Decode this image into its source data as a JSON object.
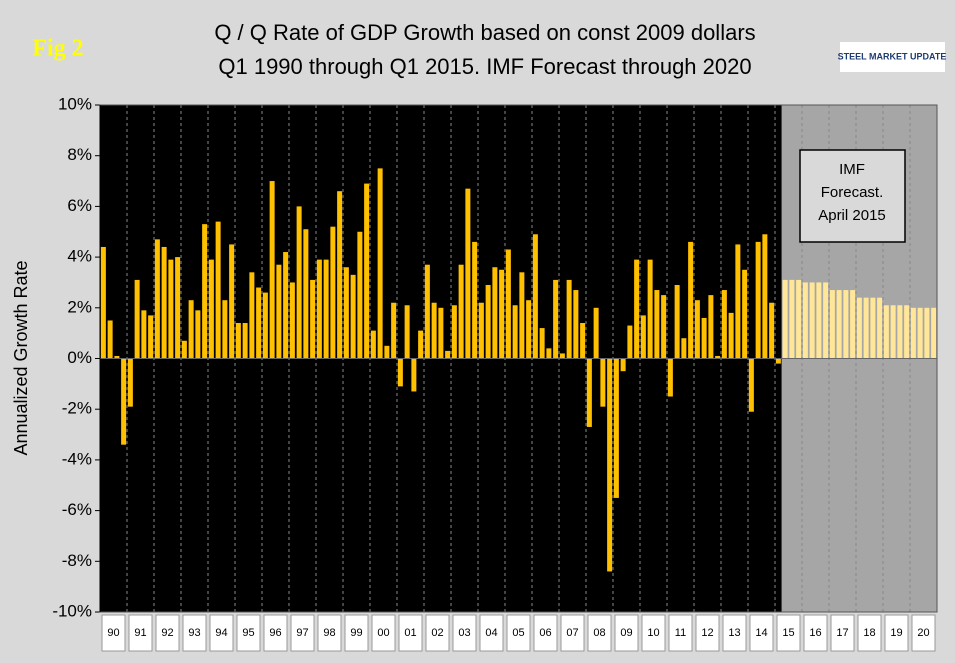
{
  "chart_data": {
    "type": "bar",
    "badge": "Fig 2",
    "title": [
      "Q / Q Rate of GDP Growth based on const 2009 dollars",
      "Q1 1990 through Q1 2015. IMF Forecast through 2020"
    ],
    "logo": "STEEL MARKET UPDATE",
    "y_label": "Annualized Growth Rate",
    "year_labels": [
      "90",
      "91",
      "92",
      "93",
      "94",
      "95",
      "96",
      "97",
      "98",
      "99",
      "00",
      "01",
      "02",
      "03",
      "04",
      "05",
      "06",
      "07",
      "08",
      "09",
      "10",
      "11",
      "12",
      "13",
      "14",
      "15",
      "16",
      "17",
      "18",
      "19",
      "20"
    ],
    "color": "#ffc000",
    "values": [
      4.4,
      1.5,
      0.1,
      -3.4,
      -1.9,
      3.1,
      1.9,
      1.7,
      4.7,
      4.4,
      3.9,
      4.0,
      0.7,
      2.3,
      1.9,
      5.3,
      3.9,
      5.4,
      2.3,
      4.5,
      1.4,
      1.4,
      3.4,
      2.8,
      2.6,
      7.0,
      3.7,
      4.2,
      3.0,
      6.0,
      5.1,
      3.1,
      3.9,
      3.9,
      5.2,
      6.6,
      3.6,
      3.3,
      5.0,
      6.9,
      1.1,
      7.5,
      0.5,
      2.2,
      -1.1,
      2.1,
      -1.3,
      1.1,
      3.7,
      2.2,
      2.0,
      0.3,
      2.1,
      3.7,
      6.7,
      4.6,
      2.2,
      2.9,
      3.6,
      3.5,
      4.3,
      2.1,
      3.4,
      2.3,
      4.9,
      1.2,
      0.4,
      3.1,
      0.2,
      3.1,
      2.7,
      1.4,
      -2.7,
      2.0,
      -1.9,
      -8.4,
      -5.5,
      -0.5,
      1.3,
      3.9,
      1.7,
      3.9,
      2.7,
      2.5,
      -1.5,
      2.9,
      0.8,
      4.6,
      2.3,
      1.6,
      2.5,
      0.1,
      2.7,
      1.8,
      4.5,
      3.5,
      -2.1,
      4.6,
      4.9,
      2.2,
      -0.2
    ],
    "forecast": {
      "color": "#ffe699",
      "values": [
        3.1,
        3.1,
        3.1,
        3.0,
        3.0,
        3.0,
        3.0,
        2.7,
        2.7,
        2.7,
        2.7,
        2.4,
        2.4,
        2.4,
        2.4,
        2.1,
        2.1,
        2.1,
        2.1,
        2.0,
        2.0,
        2.0,
        2.0
      ],
      "annotation": [
        "IMF",
        "Forecast.",
        "April 2015"
      ]
    },
    "ylim": [
      -10,
      10
    ],
    "yticks": [
      {
        "value": -10,
        "label": "-10%"
      },
      {
        "value": -8,
        "label": "-8%"
      },
      {
        "value": -6,
        "label": "-6%"
      },
      {
        "value": -4,
        "label": "-4%"
      },
      {
        "value": -2,
        "label": "-2%"
      },
      {
        "value": 0,
        "label": "0%"
      },
      {
        "value": 2,
        "label": "2%"
      },
      {
        "value": 4,
        "label": "4%"
      },
      {
        "value": 6,
        "label": "6%"
      },
      {
        "value": 8,
        "label": "8%"
      },
      {
        "value": 10,
        "label": "10%"
      }
    ],
    "grid": true
  }
}
